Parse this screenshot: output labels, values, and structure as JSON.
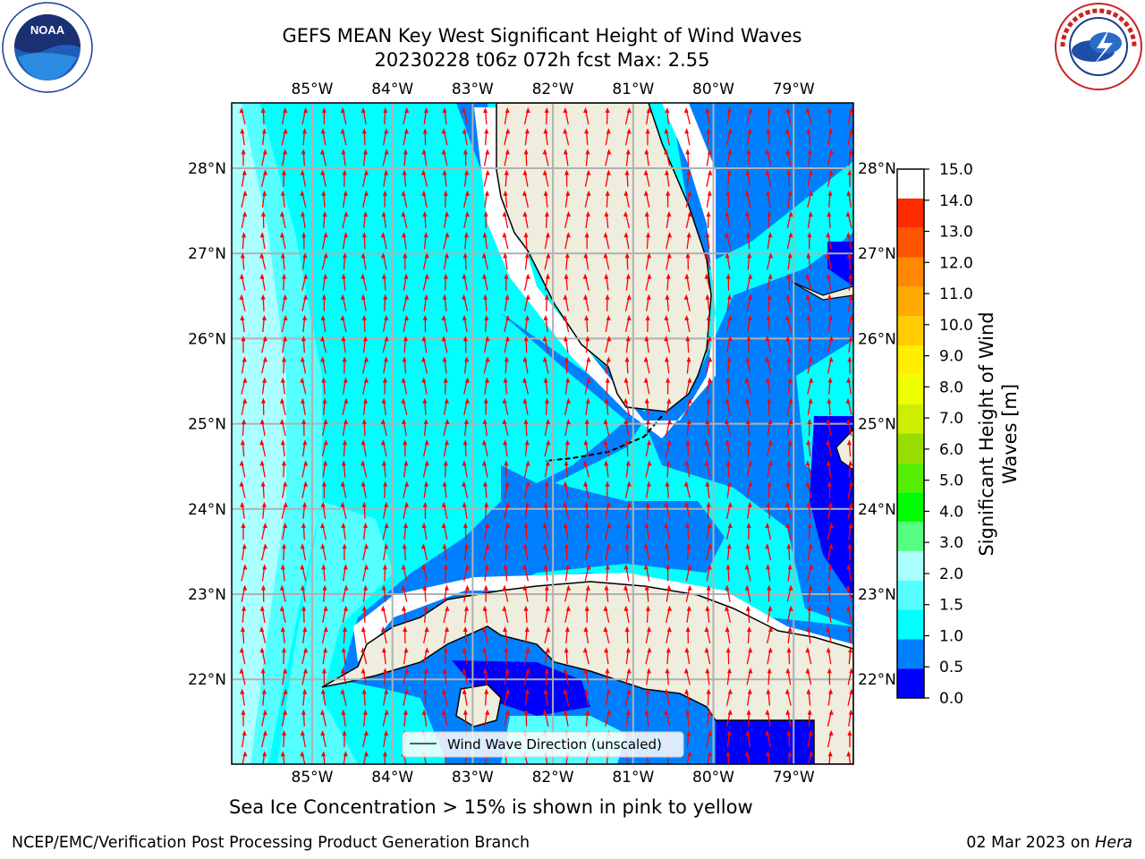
{
  "header": {
    "title_line1": "GEFS MEAN Key West Significant Height of Wind Waves",
    "title_line2": "20230228 t06z 072h fcst   Max: 2.55"
  },
  "logos": {
    "left": {
      "icon": "noaa-logo",
      "text": "NOAA"
    },
    "right": {
      "icon": "nws-logo",
      "ring_text": "NATIONAL WEATHER SERVICE"
    }
  },
  "map": {
    "lon_labels": [
      "85°W",
      "84°W",
      "83°W",
      "82°W",
      "81°W",
      "80°W",
      "79°W"
    ],
    "lat_labels": [
      "28°N",
      "27°N",
      "26°N",
      "25°N",
      "24°N",
      "23°N",
      "22°N"
    ],
    "legend_label": "Wind Wave Direction (unscaled)",
    "colors": {
      "land": "#eeedde",
      "ocean_bg": "#00ffff",
      "grid": "#b0b0b0",
      "arrow": "#ff0000",
      "coast": "#000000"
    },
    "wind_direction": "north"
  },
  "colorbar": {
    "title": "Significant Height of Wind Waves [m]",
    "ticks": [
      "0.0",
      "0.5",
      "1.0",
      "1.5",
      "2.0",
      "3.0",
      "4.0",
      "5.0",
      "6.0",
      "7.0",
      "8.0",
      "9.0",
      "10.0",
      "11.0",
      "12.0",
      "13.0",
      "14.0",
      "15.0"
    ],
    "colors": [
      "#0000ff",
      "#0080ff",
      "#00ffff",
      "#55ffff",
      "#aaffff",
      "#55ff80",
      "#00ff00",
      "#55ee00",
      "#99dd00",
      "#ccee00",
      "#eeff00",
      "#ffee00",
      "#ffcc00",
      "#ffaa00",
      "#ff8800",
      "#ff5500",
      "#ff2a00"
    ]
  },
  "caption": "Sea Ice Concentration > 15% is shown in pink to yellow",
  "footer": {
    "left": "NCEP/EMC/Verification Post Processing Product Generation Branch",
    "date": "02 Mar 2023",
    "on": "on",
    "machine": "Hera"
  }
}
